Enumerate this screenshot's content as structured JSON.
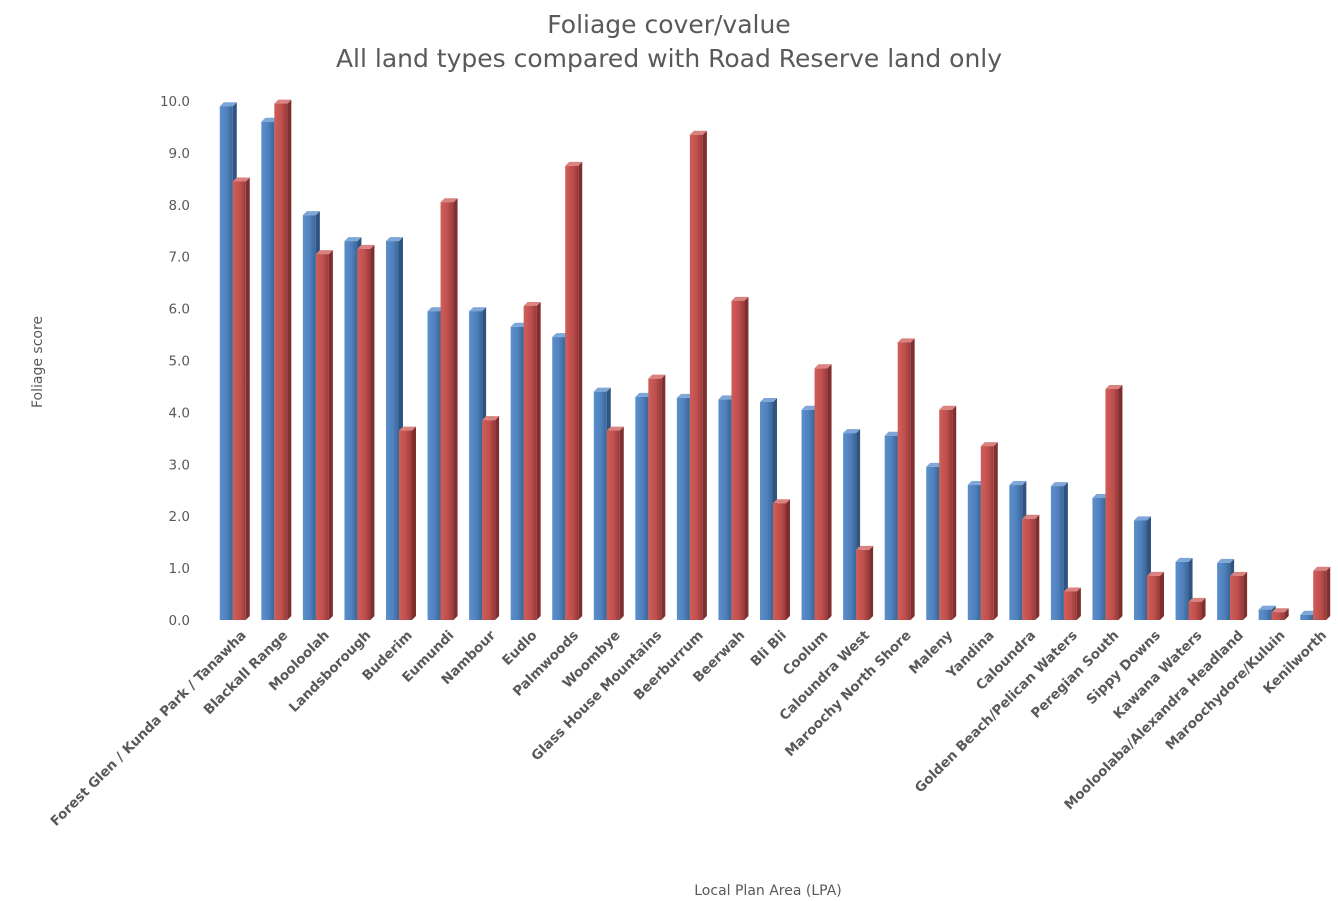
{
  "chart_data": {
    "type": "bar",
    "title": "Foliage cover/value",
    "subtitle": "All land types compared with Road Reserve land only",
    "xlabel": "Local Plan Area (LPA)",
    "ylabel": "Foliage score",
    "ylim": [
      0,
      10
    ],
    "yticks": [
      "0.0",
      "1.0",
      "2.0",
      "3.0",
      "4.0",
      "5.0",
      "6.0",
      "7.0",
      "8.0",
      "9.0",
      "10.0"
    ],
    "grid": false,
    "legend": "none",
    "categories": [
      "Forest Glen / Kunda Park / Tanawha",
      "Blackall Range",
      "Mooloolah",
      "Landsborough",
      "Buderim",
      "Eumundi",
      "Nambour",
      "Eudlo",
      "Palmwoods",
      "Woombye",
      "Glass House Mountains",
      "Beerburrum",
      "Beerwah",
      "Bli Bli",
      "Coolum",
      "Caloundra West",
      "Maroochy North Shore",
      "Maleny",
      "Yandina",
      "Caloundra",
      "Golden Beach/Pelican Waters",
      "Peregian South",
      "Sippy Downs",
      "Kawana Waters",
      "Mooloolaba/Alexandra Headland",
      "Maroochydore/Kuluin",
      "Kenilworth"
    ],
    "series": [
      {
        "color": "#4f81bd",
        "values": [
          9.9,
          9.6,
          7.8,
          7.3,
          7.3,
          5.95,
          5.95,
          5.65,
          5.45,
          4.4,
          4.3,
          4.28,
          4.25,
          4.2,
          4.05,
          3.6,
          3.55,
          2.95,
          2.6,
          2.6,
          2.58,
          2.35,
          1.92,
          1.12,
          1.1,
          0.2,
          0.1
        ]
      },
      {
        "color": "#c0504d",
        "values": [
          8.45,
          9.95,
          7.05,
          7.15,
          3.65,
          8.05,
          3.85,
          6.05,
          8.75,
          3.65,
          4.65,
          9.35,
          6.15,
          2.25,
          4.85,
          1.35,
          5.35,
          4.05,
          3.35,
          1.95,
          0.55,
          4.45,
          0.85,
          0.35,
          0.85,
          0.15,
          0.95
        ]
      }
    ]
  }
}
